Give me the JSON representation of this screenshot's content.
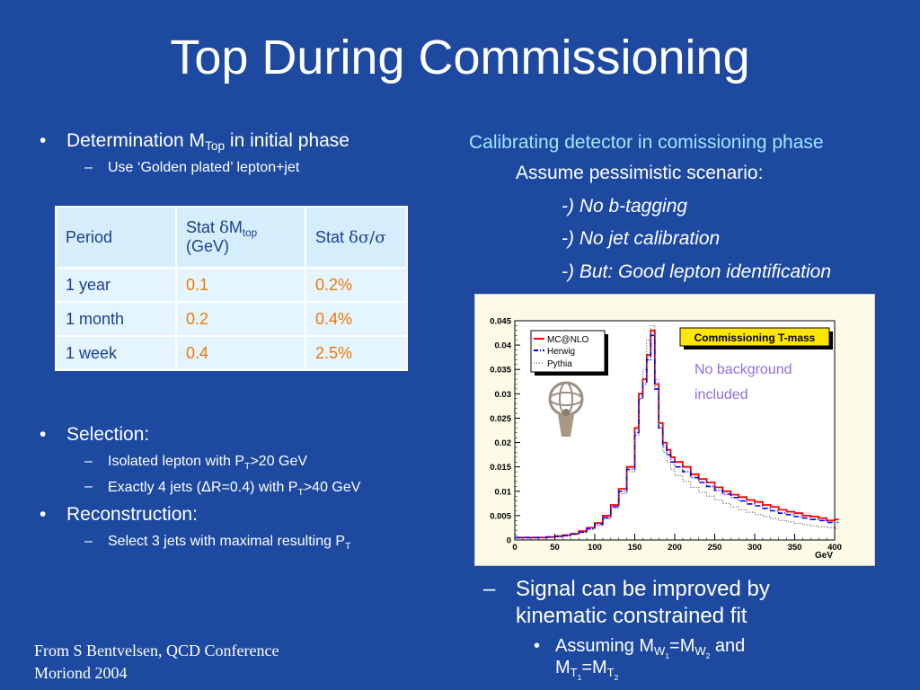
{
  "title": "Top During Commissioning",
  "left": {
    "b1_pre": "Determination M",
    "b1_sub": "Top",
    "b1_post": " in initial phase",
    "b1_sub1": "Use ‘Golden plated’ lepton+jet",
    "table": {
      "headers": {
        "c1": "Period",
        "c2_pre": "Stat ",
        "c2_sym": "δ",
        "c2_m": "M",
        "c2_sub": "top",
        "c2_unit": "(GeV)",
        "c3_pre": "Stat ",
        "c3_sym": "δσ/σ"
      },
      "rows": [
        {
          "period": "1 year",
          "dm": "0.1",
          "ds": "0.2%"
        },
        {
          "period": "1 month",
          "dm": "0.2",
          "ds": "0.4%"
        },
        {
          "period": "1 week",
          "dm": "0.4",
          "ds": "2.5%"
        }
      ]
    },
    "selection": "Selection:",
    "sel1_pre": "Isolated lepton with P",
    "sel1_sub": "T",
    "sel1_post": ">20 GeV",
    "sel2_pre": "Exactly 4 jets (",
    "sel2_sym": "Δ",
    "sel2_mid": "R=0.4) with P",
    "sel2_sub": "T",
    "sel2_post": ">40 GeV",
    "reconstruction": "Reconstruction:",
    "rec1_pre": "Select 3 jets with maximal resulting P",
    "rec1_sub": "T"
  },
  "right": {
    "calib": "Calibrating detector in comissioning phase",
    "assume": "Assume pessimistic scenario:",
    "conditions": [
      "-) No b-tagging",
      "-) No jet calibration",
      "-) But: Good lepton identification"
    ],
    "signal_dash": "–",
    "signal": "Signal can be improved by kinematic constrained fit",
    "assuming_dot": "•",
    "assuming_pre": "Assuming M",
    "assuming_s1": "W",
    "assuming_s1n": "1",
    "assuming_eq": "=M",
    "assuming_s2": "W",
    "assuming_s2n": "2",
    "assuming_and": " and",
    "assuming_m": "M",
    "assuming_t1": "T",
    "assuming_t1n": "1",
    "assuming_eq2": "=M",
    "assuming_t2": "T",
    "assuming_t2n": "2"
  },
  "credit": {
    "line1": "From S Bentvelsen, QCD Conference",
    "line2": "Moriond 2004"
  },
  "chart_data": {
    "type": "line",
    "title": "Commissioning T-mass",
    "xlabel": "GeV",
    "ylabel": "",
    "xlim": [
      0,
      400
    ],
    "ylim": [
      0,
      0.045
    ],
    "x_ticks": [
      "0",
      "50",
      "100",
      "150",
      "200",
      "250",
      "300",
      "350",
      "400"
    ],
    "y_ticks": [
      "0",
      "0.005",
      "0.01",
      "0.015",
      "0.02",
      "0.025",
      "0.03",
      "0.035",
      "0.04",
      "0.045"
    ],
    "annotation": [
      "No background",
      "included"
    ],
    "x": [
      0,
      10,
      20,
      30,
      40,
      50,
      60,
      70,
      80,
      90,
      100,
      110,
      120,
      130,
      140,
      150,
      155,
      160,
      165,
      170,
      175,
      180,
      185,
      190,
      195,
      200,
      210,
      220,
      230,
      240,
      250,
      260,
      270,
      280,
      290,
      300,
      310,
      320,
      330,
      340,
      350,
      360,
      370,
      380,
      390,
      400
    ],
    "series": [
      {
        "name": "MC@NLO",
        "color": "#ff0000",
        "style": "solid",
        "values": [
          0.0005,
          0.0005,
          0.0005,
          0.0005,
          0.0006,
          0.0008,
          0.001,
          0.0013,
          0.0018,
          0.0025,
          0.0035,
          0.005,
          0.0072,
          0.0105,
          0.015,
          0.023,
          0.03,
          0.033,
          0.038,
          0.043,
          0.032,
          0.024,
          0.02,
          0.0185,
          0.017,
          0.016,
          0.015,
          0.0135,
          0.0125,
          0.0118,
          0.0108,
          0.01,
          0.0093,
          0.0088,
          0.0082,
          0.0078,
          0.0072,
          0.0068,
          0.0062,
          0.0058,
          0.0055,
          0.005,
          0.0048,
          0.0045,
          0.004,
          0.0042
        ]
      },
      {
        "name": "Herwig",
        "color": "#0000ff",
        "style": "dashdot",
        "values": [
          0.0005,
          0.0005,
          0.0005,
          0.0005,
          0.0006,
          0.0007,
          0.0009,
          0.0012,
          0.0016,
          0.0023,
          0.0032,
          0.0046,
          0.0068,
          0.01,
          0.0145,
          0.022,
          0.029,
          0.032,
          0.037,
          0.042,
          0.031,
          0.023,
          0.0192,
          0.0175,
          0.016,
          0.015,
          0.014,
          0.0128,
          0.0118,
          0.011,
          0.0102,
          0.0094,
          0.0087,
          0.008,
          0.0074,
          0.007,
          0.0065,
          0.006,
          0.0055,
          0.0052,
          0.0048,
          0.0045,
          0.0042,
          0.004,
          0.0036,
          0.0036
        ]
      },
      {
        "name": "Pythia",
        "color": "#333333",
        "style": "dotted",
        "values": [
          0.0004,
          0.0004,
          0.0004,
          0.0004,
          0.0005,
          0.0006,
          0.0008,
          0.0011,
          0.0015,
          0.0021,
          0.003,
          0.0043,
          0.0064,
          0.0095,
          0.014,
          0.0215,
          0.03,
          0.035,
          0.041,
          0.044,
          0.033,
          0.023,
          0.018,
          0.016,
          0.0145,
          0.0132,
          0.012,
          0.0108,
          0.0098,
          0.009,
          0.0082,
          0.0075,
          0.0068,
          0.0062,
          0.0057,
          0.0052,
          0.0048,
          0.0044,
          0.004,
          0.0037,
          0.0034,
          0.0031,
          0.0029,
          0.0027,
          0.0025,
          0.0024
        ]
      }
    ]
  }
}
